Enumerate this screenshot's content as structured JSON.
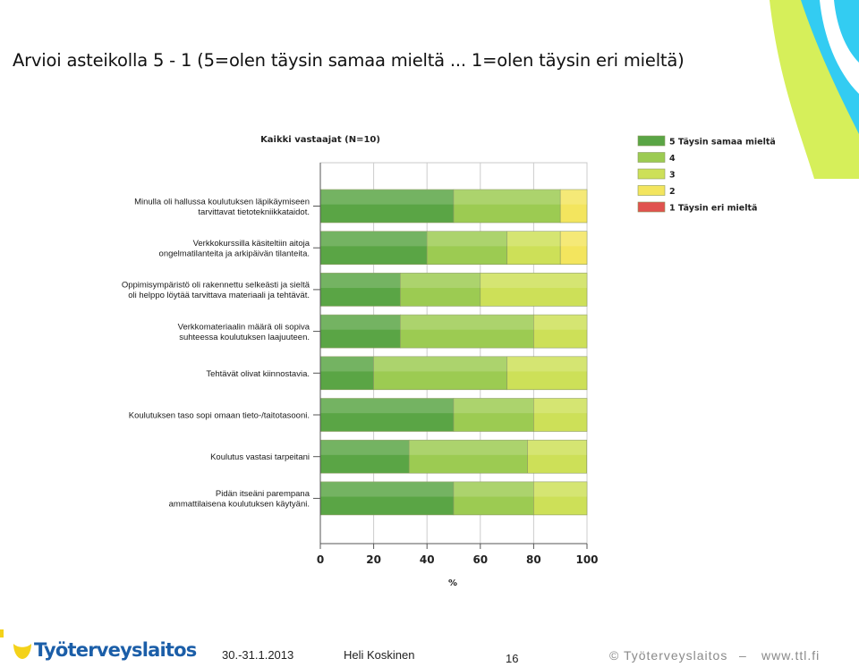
{
  "slide": {
    "title": "Arvioi asteikolla 5 - 1 (5=olen täysin samaa mieltä ... 1=olen täysin eri mieltä)"
  },
  "colors": {
    "level5": "#5aa545",
    "level4": "#9ccb52",
    "level3": "#cde058",
    "level2": "#f3e55e",
    "level1": "#e0524e",
    "accent_blue": "#1b5ea8",
    "accent_lime": "#d6ef5a",
    "accent_cyan": "#33ccf2"
  },
  "chart_data": {
    "type": "bar",
    "orientation": "horizontal",
    "stacked": true,
    "title": "Kaikki vastaajat (N=10)",
    "xlabel": "%",
    "xlim": [
      0,
      100
    ],
    "xticks": [
      "0",
      "20",
      "40",
      "60",
      "80",
      "100"
    ],
    "categories": [
      [
        "Minulla oli hallussa koulutuksen läpikäymiseen",
        "tarvittavat tietotekniikkataidot."
      ],
      [
        "Verkkokurssilla käsiteltiin aitoja",
        "ongelmatilanteita ja arkipäivän tilanteita."
      ],
      [
        "Oppimisympäristö oli rakennettu selkeästi ja sieltä",
        "oli helppo löytää tarvittava materiaali ja tehtävät."
      ],
      [
        "Verkkomateriaalin määrä oli sopiva",
        "suhteessa koulutuksen laajuuteen."
      ],
      [
        "Tehtävät olivat kiinnostavia."
      ],
      [
        "Koulutuksen taso sopi omaan tieto-/taitotasooni."
      ],
      [
        "Koulutus vastasi tarpeitani"
      ],
      [
        "Pidän itseäni parempana",
        "ammattilaisena koulutuksen käytyäni."
      ]
    ],
    "series": [
      {
        "name": "5 Täysin samaa mieltä",
        "values": [
          50,
          40,
          30,
          30,
          20,
          50,
          33.3,
          50
        ]
      },
      {
        "name": "4",
        "values": [
          40,
          30,
          30,
          50,
          50,
          30,
          44.4,
          30
        ]
      },
      {
        "name": "3",
        "values": [
          0,
          20,
          40,
          20,
          30,
          20,
          22.2,
          20
        ]
      },
      {
        "name": "2",
        "values": [
          10,
          10,
          0,
          0,
          0,
          0,
          0,
          0
        ]
      },
      {
        "name": "1 Täysin eri mieltä",
        "values": [
          0,
          0,
          0,
          0,
          0,
          0,
          0,
          0
        ]
      }
    ],
    "legend_position": "top-right",
    "grid": true
  },
  "footer": {
    "logo": "Työterveyslaitos",
    "date": "30.-31.1.2013",
    "author": "Heli Koskinen",
    "page": "16",
    "copyright": "© Työterveyslaitos",
    "dash": "–",
    "url": "www.ttl.fi"
  }
}
